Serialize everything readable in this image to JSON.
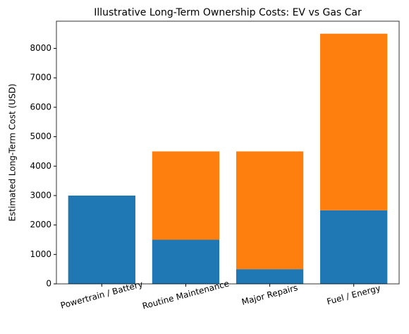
{
  "chart_data": {
    "type": "stacked_bar",
    "title": "Illustrative Long-Term Ownership Costs: EV vs Gas Car",
    "y_label": "Estimated Long-Term Cost (USD)",
    "categories": [
      "Powertrain / Battery",
      "Routine Maintenance",
      "Major Repairs",
      "Fuel / Energy"
    ],
    "series": [
      {
        "color": "#1f77b4",
        "values": [
          3000,
          1500,
          500,
          2500
        ]
      },
      {
        "color": "#ff7f0e",
        "values": [
          0,
          3000,
          4000,
          6000
        ]
      }
    ],
    "ylim": [
      0,
      8925
    ],
    "yticks": [
      0,
      1000,
      2000,
      3000,
      4000,
      5000,
      6000,
      7000,
      8000
    ]
  }
}
